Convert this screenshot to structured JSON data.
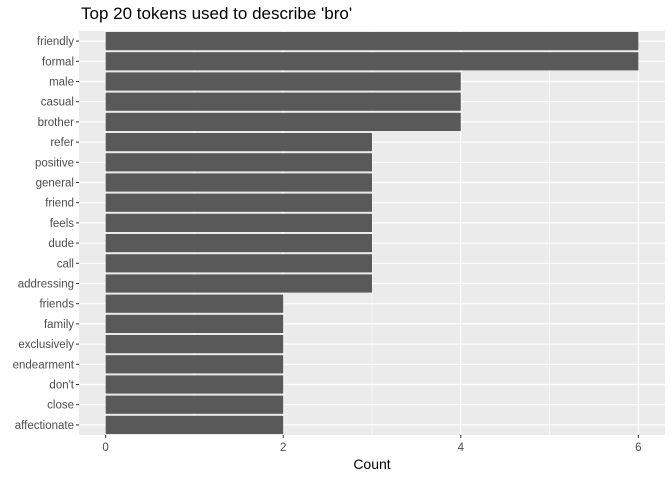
{
  "chart_data": {
    "type": "bar",
    "orientation": "horizontal",
    "title": "Top 20 tokens used to describe 'bro'",
    "xlabel": "Count",
    "ylabel": "",
    "categories": [
      "friendly",
      "formal",
      "male",
      "casual",
      "brother",
      "refer",
      "positive",
      "general",
      "friend",
      "feels",
      "dude",
      "call",
      "addressing",
      "friends",
      "family",
      "exclusively",
      "endearment",
      "don't",
      "close",
      "affectionate"
    ],
    "values": [
      6,
      6,
      4,
      4,
      4,
      3,
      3,
      3,
      3,
      3,
      3,
      3,
      3,
      2,
      2,
      2,
      2,
      2,
      2,
      2
    ],
    "xlim": [
      -0.3,
      6.3
    ],
    "xticks": [
      0,
      2,
      4,
      6
    ],
    "grid": true,
    "legend": "none",
    "colors": {
      "bar": "#595959",
      "panel": "#ebebeb",
      "grid": "#ffffff"
    }
  }
}
